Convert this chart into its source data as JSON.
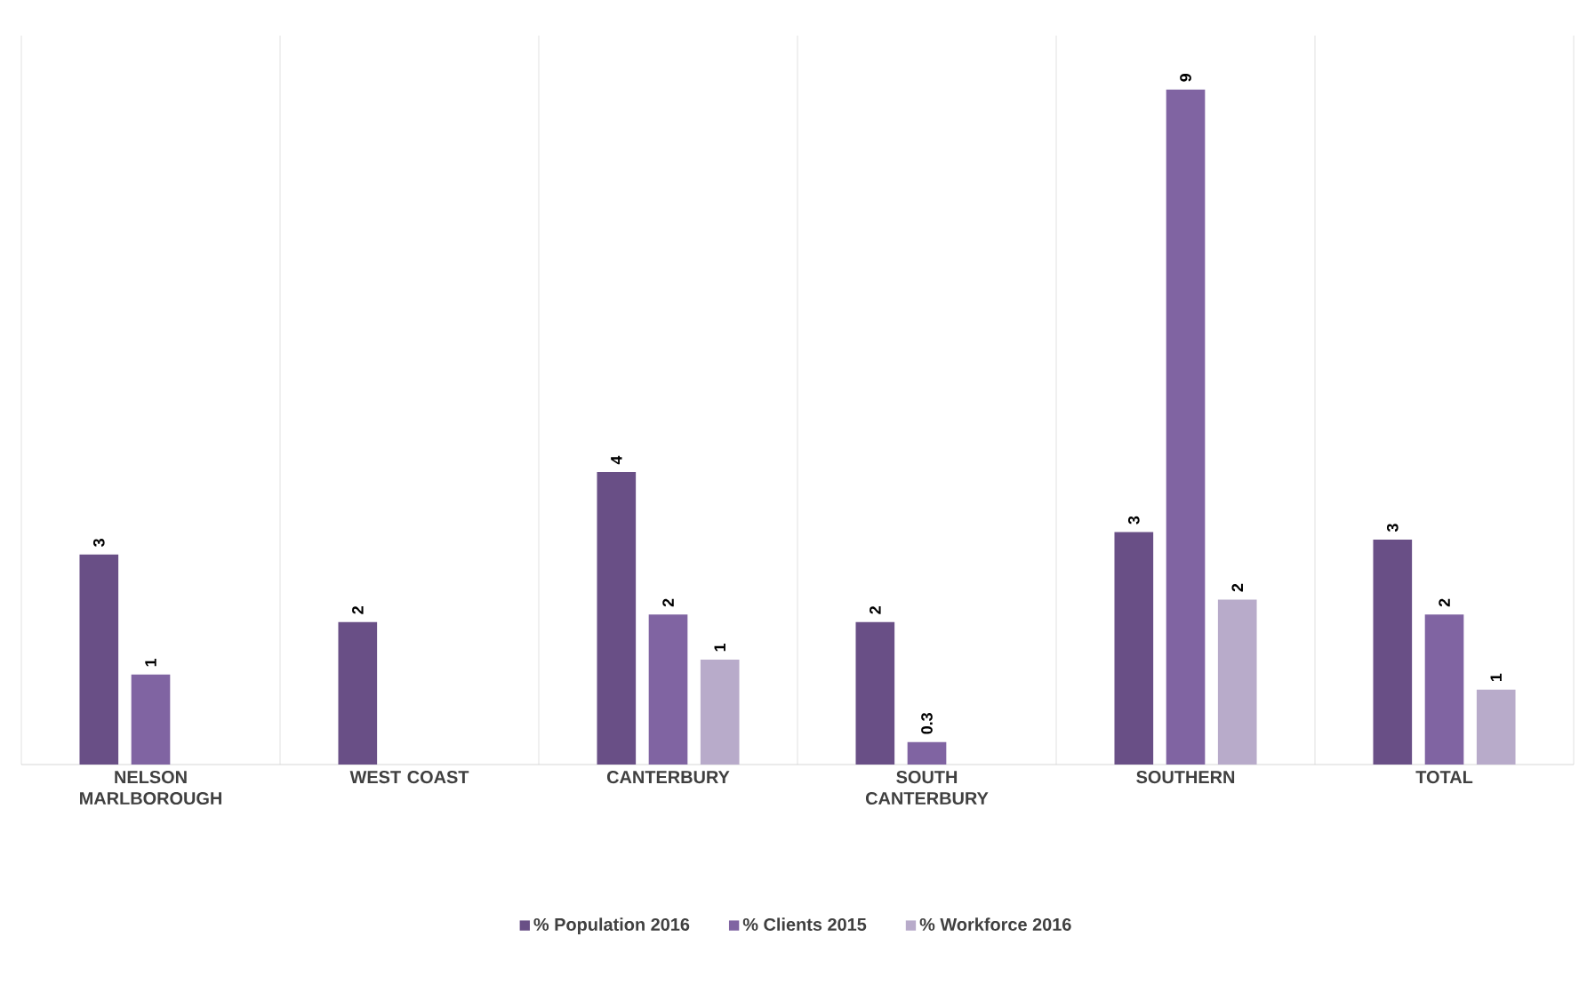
{
  "chart_data": {
    "type": "bar",
    "grid": "x",
    "legend": "bottom",
    "categories": [
      "NELSON MARLBOROUGH",
      "WEST COAST",
      "CANTERBURY",
      "SOUTH CANTERBURY",
      "SOUTHERN",
      "TOTAL"
    ],
    "series": [
      {
        "name": "% Population 2016",
        "color": "#694f86",
        "values": [
          2.8,
          1.9,
          3.9,
          1.9,
          3.1,
          3.0
        ],
        "value_labels": [
          "3",
          "2",
          "4",
          "2",
          "3",
          "3"
        ]
      },
      {
        "name": "% Clients 2015",
        "color": "#8064a2",
        "values": [
          1.2,
          null,
          2.0,
          0.3,
          9.0,
          2.0
        ],
        "value_labels": [
          "1",
          null,
          "2",
          "0.3",
          "9",
          "2"
        ]
      },
      {
        "name": "% Workforce 2016",
        "color": "#b8abca",
        "values": [
          null,
          null,
          1.4,
          null,
          2.2,
          1.0
        ],
        "value_labels": [
          null,
          null,
          "1",
          null,
          "2",
          "1"
        ]
      }
    ]
  }
}
